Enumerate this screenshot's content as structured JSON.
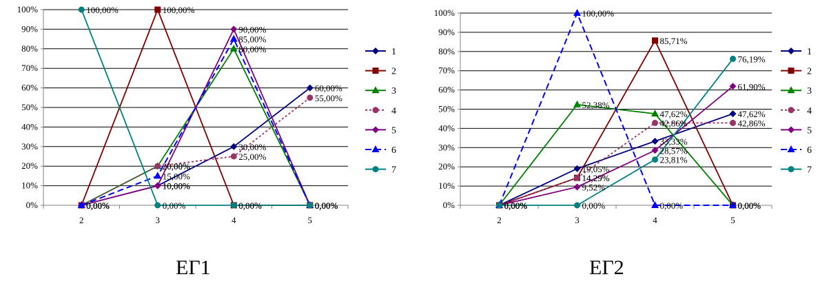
{
  "colors": {
    "1": "#000080",
    "2": "#800000",
    "3": "#008000",
    "4": "#993366",
    "5": "#800080",
    "6": "#0000ff",
    "7": "#008080",
    "grid": "#000000",
    "axis": "#808080"
  },
  "chart_data": [
    {
      "type": "line",
      "caption": "ЕГ1",
      "categories": [
        "2",
        "3",
        "4",
        "5"
      ],
      "ylim": [
        0,
        100
      ],
      "yticks": [
        "0%",
        "10%",
        "20%",
        "30%",
        "40%",
        "50%",
        "60%",
        "70%",
        "80%",
        "90%",
        "100%"
      ],
      "legend_position": "right",
      "series": [
        {
          "name": "1",
          "values": [
            0,
            10,
            30,
            60
          ],
          "labels": [
            "0,00%",
            "10,00%",
            "30,00%",
            "60,00%"
          ],
          "marker": "diamond",
          "dash": "solid"
        },
        {
          "name": "2",
          "values": [
            0,
            100,
            0,
            0
          ],
          "labels": [
            "0,00%",
            "100,00%",
            "0,00%",
            "0,00%"
          ],
          "marker": "square",
          "dash": "solid"
        },
        {
          "name": "3",
          "values": [
            0,
            20,
            80,
            0
          ],
          "labels": [
            "0,00%",
            "20,00%",
            "80,00%",
            "0,00%"
          ],
          "marker": "triangle",
          "dash": "solid"
        },
        {
          "name": "4",
          "values": [
            0,
            20,
            25,
            55
          ],
          "labels": [
            "0,00%",
            "20,00%",
            "25,00%",
            "55,00%"
          ],
          "marker": "circle",
          "dash": "dotted"
        },
        {
          "name": "5",
          "values": [
            0,
            10,
            90,
            0
          ],
          "labels": [
            "0,00%",
            "10,00%",
            "90,00%",
            "0,00%"
          ],
          "marker": "diamond",
          "dash": "solid"
        },
        {
          "name": "6",
          "values": [
            0,
            15,
            85,
            0
          ],
          "labels": [
            "0,00%",
            "15,00%",
            "85,00%",
            "0,00%"
          ],
          "marker": "triangle",
          "dash": "dashed"
        },
        {
          "name": "7",
          "values": [
            100,
            0,
            0,
            0
          ],
          "labels": [
            "100,00%",
            "0,00%",
            "0,00%",
            "0,00%"
          ],
          "marker": "circle",
          "dash": "solid"
        }
      ]
    },
    {
      "type": "line",
      "caption": "ЕГ2",
      "categories": [
        "2",
        "3",
        "4",
        "5"
      ],
      "ylim": [
        0,
        100
      ],
      "yticks": [
        "0%",
        "10%",
        "20%",
        "30%",
        "40%",
        "50%",
        "60%",
        "70%",
        "80%",
        "90%",
        "100%"
      ],
      "legend_position": "right",
      "series": [
        {
          "name": "1",
          "values": [
            0,
            19.05,
            33.33,
            47.62
          ],
          "labels": [
            "0,00%",
            "19,05%",
            "33,33%",
            "47,62%"
          ],
          "marker": "diamond",
          "dash": "solid"
        },
        {
          "name": "2",
          "values": [
            0,
            14.29,
            85.71,
            0
          ],
          "labels": [
            "0,00%",
            "14,29%",
            "85,71%",
            "0,00%"
          ],
          "marker": "square",
          "dash": "solid"
        },
        {
          "name": "3",
          "values": [
            0,
            52.38,
            47.62,
            0
          ],
          "labels": [
            "0,00%",
            "52,38%",
            "47,62%",
            "0,00%"
          ],
          "marker": "triangle",
          "dash": "solid"
        },
        {
          "name": "4",
          "values": [
            0,
            14.29,
            42.86,
            42.86
          ],
          "labels": [
            "0,00%",
            "14,29%",
            "42,86%",
            "42,86%"
          ],
          "marker": "circle",
          "dash": "dotted"
        },
        {
          "name": "5",
          "values": [
            0,
            9.52,
            28.57,
            61.9
          ],
          "labels": [
            "0,00%",
            "9,52%",
            "28,57%",
            "61,90%"
          ],
          "marker": "diamond",
          "dash": "solid"
        },
        {
          "name": "6",
          "values": [
            0,
            100,
            0,
            0
          ],
          "labels": [
            "0,00%",
            "100,00%",
            "0,00%",
            "0,00%"
          ],
          "marker": "triangle",
          "dash": "dashed"
        },
        {
          "name": "7",
          "values": [
            0,
            0,
            23.81,
            76.19
          ],
          "labels": [
            "0,00%",
            "0,00%",
            "23,81%",
            "76,19%"
          ],
          "marker": "circle",
          "dash": "solid"
        }
      ]
    }
  ]
}
